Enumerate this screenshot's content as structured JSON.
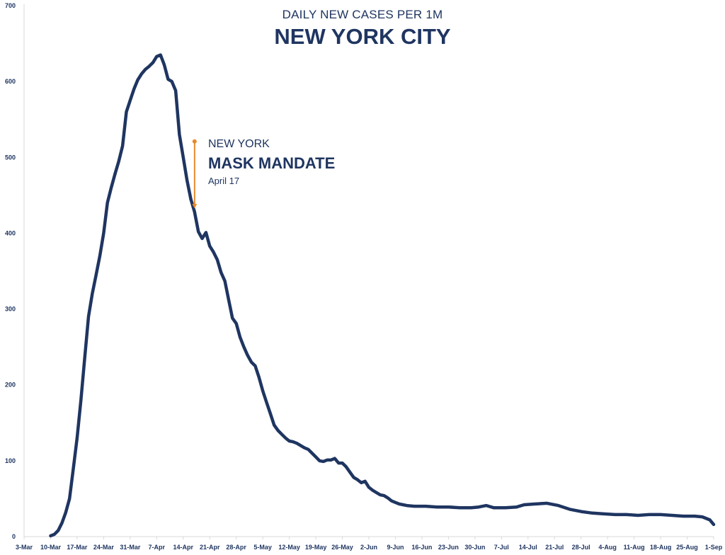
{
  "chart_data": {
    "type": "line",
    "subtitle": "DAILY NEW CASES PER 1M",
    "title": "NEW YORK CITY",
    "xlabel": "",
    "ylabel": "",
    "ylim": [
      0,
      700
    ],
    "yticks": [
      0,
      100,
      200,
      300,
      400,
      500,
      600,
      700
    ],
    "xlim": [
      "2020-03-03",
      "2020-09-01"
    ],
    "xticks": [
      "3-Mar",
      "10-Mar",
      "17-Mar",
      "24-Mar",
      "31-Mar",
      "7-Apr",
      "14-Apr",
      "21-Apr",
      "28-Apr",
      "5-May",
      "12-May",
      "19-May",
      "26-May",
      "2-Jun",
      "9-Jun",
      "16-Jun",
      "23-Jun",
      "30-Jun",
      "7-Jul",
      "14-Jul",
      "21-Jul",
      "28-Jul",
      "4-Aug",
      "11-Aug",
      "18-Aug",
      "25-Aug",
      "1-Sep"
    ],
    "grid": false,
    "legend": "none",
    "line_color": "#1f3561",
    "annotation_color": "#e8892b",
    "series": [
      {
        "points": [
          [
            "2020-03-10",
            1
          ],
          [
            "2020-03-11",
            3
          ],
          [
            "2020-03-12",
            8
          ],
          [
            "2020-03-13",
            18
          ],
          [
            "2020-03-14",
            32
          ],
          [
            "2020-03-15",
            50
          ],
          [
            "2020-03-16",
            90
          ],
          [
            "2020-03-17",
            130
          ],
          [
            "2020-03-18",
            180
          ],
          [
            "2020-03-19",
            235
          ],
          [
            "2020-03-20",
            290
          ],
          [
            "2020-03-21",
            320
          ],
          [
            "2020-03-22",
            345
          ],
          [
            "2020-03-23",
            370
          ],
          [
            "2020-03-24",
            400
          ],
          [
            "2020-03-25",
            440
          ],
          [
            "2020-03-26",
            460
          ],
          [
            "2020-03-27",
            478
          ],
          [
            "2020-03-28",
            495
          ],
          [
            "2020-03-29",
            515
          ],
          [
            "2020-03-30",
            560
          ],
          [
            "2020-03-31",
            575
          ],
          [
            "2020-04-01",
            590
          ],
          [
            "2020-04-02",
            602
          ],
          [
            "2020-04-03",
            610
          ],
          [
            "2020-04-04",
            616
          ],
          [
            "2020-04-05",
            620
          ],
          [
            "2020-04-06",
            625
          ],
          [
            "2020-04-07",
            633
          ],
          [
            "2020-04-08",
            635
          ],
          [
            "2020-04-09",
            622
          ],
          [
            "2020-04-10",
            603
          ],
          [
            "2020-04-11",
            600
          ],
          [
            "2020-04-12",
            588
          ],
          [
            "2020-04-13",
            530
          ],
          [
            "2020-04-14",
            500
          ],
          [
            "2020-04-15",
            470
          ],
          [
            "2020-04-16",
            445
          ],
          [
            "2020-04-17",
            428
          ],
          [
            "2020-04-18",
            402
          ],
          [
            "2020-04-19",
            393
          ],
          [
            "2020-04-20",
            401
          ],
          [
            "2020-04-21",
            383
          ],
          [
            "2020-04-22",
            375
          ],
          [
            "2020-04-23",
            365
          ],
          [
            "2020-04-24",
            348
          ],
          [
            "2020-04-25",
            337
          ],
          [
            "2020-04-26",
            312
          ],
          [
            "2020-04-27",
            288
          ],
          [
            "2020-04-28",
            281
          ],
          [
            "2020-04-29",
            263
          ],
          [
            "2020-04-30",
            250
          ],
          [
            "2020-05-01",
            239
          ],
          [
            "2020-05-02",
            230
          ],
          [
            "2020-05-03",
            225
          ],
          [
            "2020-05-04",
            210
          ],
          [
            "2020-05-05",
            192
          ],
          [
            "2020-05-06",
            177
          ],
          [
            "2020-05-07",
            162
          ],
          [
            "2020-05-08",
            147
          ],
          [
            "2020-05-09",
            140
          ],
          [
            "2020-05-10",
            135
          ],
          [
            "2020-05-11",
            130
          ],
          [
            "2020-05-12",
            126
          ],
          [
            "2020-05-13",
            125
          ],
          [
            "2020-05-14",
            123
          ],
          [
            "2020-05-15",
            120
          ],
          [
            "2020-05-16",
            117
          ],
          [
            "2020-05-17",
            115
          ],
          [
            "2020-05-18",
            110
          ],
          [
            "2020-05-19",
            105
          ],
          [
            "2020-05-20",
            100
          ],
          [
            "2020-05-21",
            99
          ],
          [
            "2020-05-22",
            101
          ],
          [
            "2020-05-23",
            101
          ],
          [
            "2020-05-24",
            103
          ],
          [
            "2020-05-25",
            97
          ],
          [
            "2020-05-26",
            97
          ],
          [
            "2020-05-27",
            92
          ],
          [
            "2020-05-28",
            85
          ],
          [
            "2020-05-29",
            78
          ],
          [
            "2020-05-30",
            75
          ],
          [
            "2020-05-31",
            71
          ],
          [
            "2020-06-01",
            73
          ],
          [
            "2020-06-02",
            65
          ],
          [
            "2020-06-03",
            61
          ],
          [
            "2020-06-04",
            58
          ],
          [
            "2020-06-05",
            55
          ],
          [
            "2020-06-06",
            54
          ],
          [
            "2020-06-07",
            51
          ],
          [
            "2020-06-08",
            47
          ],
          [
            "2020-06-09",
            45
          ],
          [
            "2020-06-10",
            43
          ],
          [
            "2020-06-11",
            42
          ],
          [
            "2020-06-12",
            41
          ],
          [
            "2020-06-14",
            40
          ],
          [
            "2020-06-17",
            40
          ],
          [
            "2020-06-20",
            39
          ],
          [
            "2020-06-23",
            39
          ],
          [
            "2020-06-26",
            38
          ],
          [
            "2020-06-29",
            38
          ],
          [
            "2020-07-01",
            39
          ],
          [
            "2020-07-03",
            41
          ],
          [
            "2020-07-05",
            38
          ],
          [
            "2020-07-08",
            38
          ],
          [
            "2020-07-11",
            39
          ],
          [
            "2020-07-13",
            42
          ],
          [
            "2020-07-16",
            43
          ],
          [
            "2020-07-19",
            44
          ],
          [
            "2020-07-22",
            41
          ],
          [
            "2020-07-25",
            36
          ],
          [
            "2020-07-28",
            33
          ],
          [
            "2020-07-31",
            31
          ],
          [
            "2020-08-03",
            30
          ],
          [
            "2020-08-06",
            29
          ],
          [
            "2020-08-09",
            29
          ],
          [
            "2020-08-12",
            28
          ],
          [
            "2020-08-15",
            29
          ],
          [
            "2020-08-18",
            29
          ],
          [
            "2020-08-21",
            28
          ],
          [
            "2020-08-24",
            27
          ],
          [
            "2020-08-27",
            27
          ],
          [
            "2020-08-29",
            26
          ],
          [
            "2020-08-31",
            22
          ],
          [
            "2020-09-01",
            16
          ]
        ]
      }
    ],
    "annotation": {
      "line1": "NEW YORK",
      "line2": "MASK MANDATE",
      "line3": "April 17",
      "date": "2020-04-17",
      "y_top": 521,
      "y_bottom": 433
    }
  }
}
